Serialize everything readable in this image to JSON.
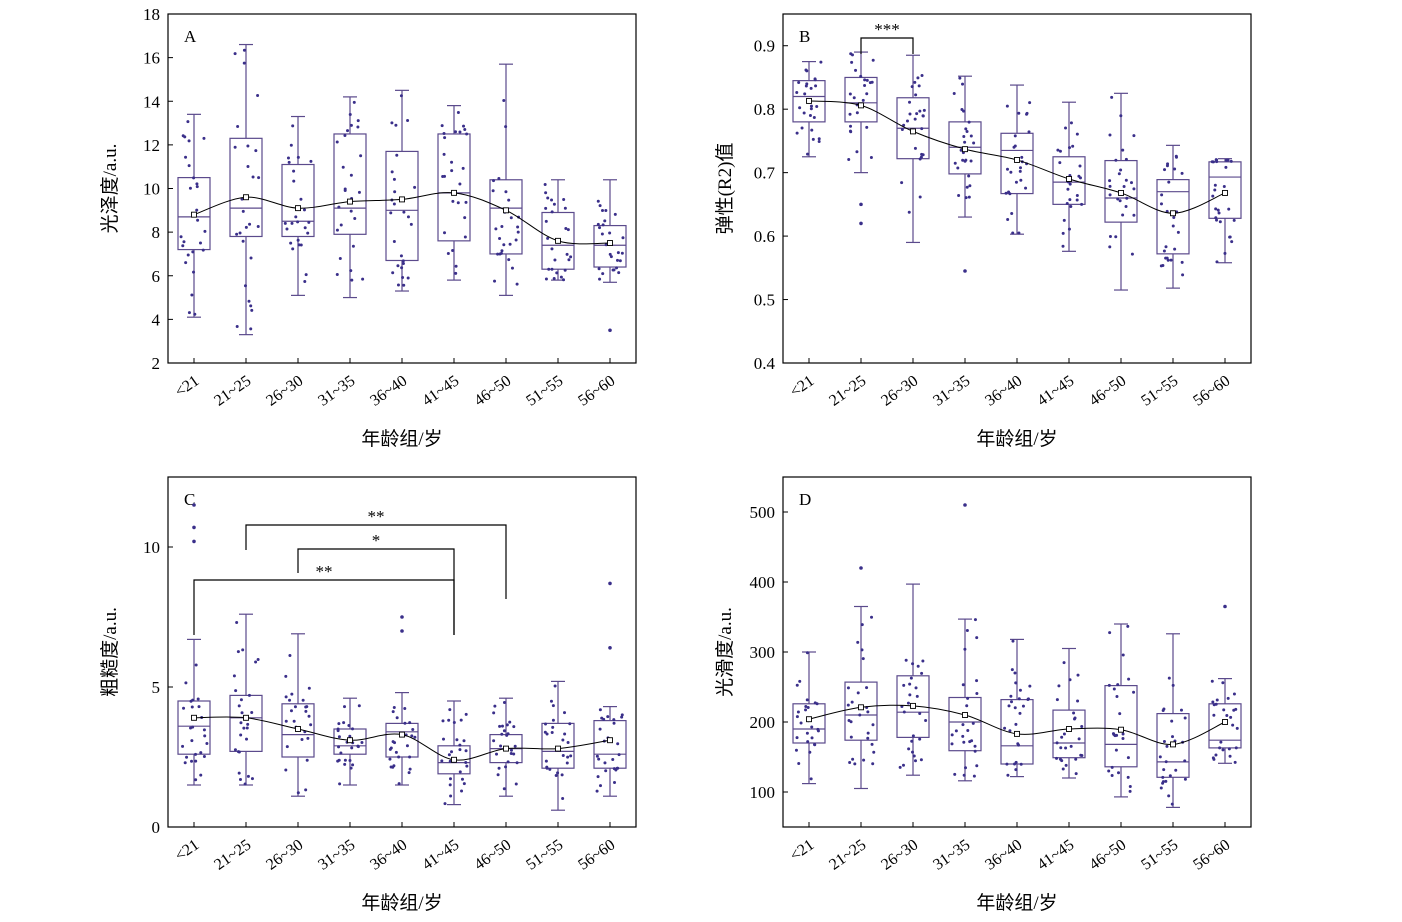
{
  "chart_data": [
    {
      "type": "box",
      "label": "A",
      "xlabel": "年龄组/岁",
      "ylabel": "光泽度/a.u.",
      "categories": [
        "<21",
        "21~25",
        "26~30",
        "31~35",
        "36~40",
        "41~45",
        "46~50",
        "51~55",
        "56~60"
      ],
      "ylim": [
        2,
        18
      ],
      "yticks": [
        2,
        4,
        6,
        8,
        10,
        12,
        14,
        16,
        18
      ],
      "boxes": [
        {
          "min": 4.1,
          "q1": 7.2,
          "median": 8.7,
          "q3": 10.5,
          "max": 13.4,
          "mean": 8.8
        },
        {
          "min": 3.3,
          "q1": 7.8,
          "median": 9.1,
          "q3": 12.3,
          "max": 16.6,
          "mean": 9.6
        },
        {
          "min": 5.1,
          "q1": 7.8,
          "median": 8.5,
          "q3": 11.1,
          "max": 13.3,
          "mean": 9.1
        },
        {
          "min": 5.0,
          "q1": 7.9,
          "median": 9.1,
          "q3": 12.5,
          "max": 14.2,
          "mean": 9.4
        },
        {
          "min": 5.3,
          "q1": 6.7,
          "median": 9.0,
          "q3": 11.7,
          "max": 14.5,
          "mean": 9.5
        },
        {
          "min": 5.8,
          "q1": 7.6,
          "median": 9.8,
          "q3": 12.5,
          "max": 13.8,
          "mean": 9.8
        },
        {
          "min": 5.1,
          "q1": 7.0,
          "median": 9.1,
          "q3": 10.4,
          "max": 15.7,
          "mean": 9.0
        },
        {
          "min": 5.8,
          "q1": 6.3,
          "median": 7.4,
          "q3": 8.9,
          "max": 10.4,
          "mean": 7.6
        },
        {
          "min": 5.7,
          "q1": 6.4,
          "median": 7.4,
          "q3": 8.3,
          "max": 10.4,
          "mean": 7.5
        }
      ],
      "outliers": [
        {
          "category": "56~60",
          "value": 3.5
        }
      ],
      "significance": []
    },
    {
      "type": "box",
      "label": "B",
      "xlabel": "年龄组/岁",
      "ylabel": "弹性(R2)值",
      "categories": [
        "<21",
        "21~25",
        "26~30",
        "31~35",
        "36~40",
        "41~45",
        "46~50",
        "51~55",
        "56~60"
      ],
      "ylim": [
        0.4,
        0.95
      ],
      "yticks": [
        0.4,
        0.5,
        0.6,
        0.7,
        0.8,
        0.9
      ],
      "boxes": [
        {
          "min": 0.725,
          "q1": 0.78,
          "median": 0.82,
          "q3": 0.845,
          "max": 0.875,
          "mean": 0.813
        },
        {
          "min": 0.7,
          "q1": 0.78,
          "median": 0.81,
          "q3": 0.85,
          "max": 0.89,
          "mean": 0.806
        },
        {
          "min": 0.59,
          "q1": 0.722,
          "median": 0.77,
          "q3": 0.818,
          "max": 0.885,
          "mean": 0.765
        },
        {
          "min": 0.63,
          "q1": 0.698,
          "median": 0.74,
          "q3": 0.78,
          "max": 0.852,
          "mean": 0.737
        },
        {
          "min": 0.603,
          "q1": 0.667,
          "median": 0.735,
          "q3": 0.762,
          "max": 0.838,
          "mean": 0.72
        },
        {
          "min": 0.576,
          "q1": 0.65,
          "median": 0.685,
          "q3": 0.725,
          "max": 0.811,
          "mean": 0.69
        },
        {
          "min": 0.515,
          "q1": 0.622,
          "median": 0.66,
          "q3": 0.719,
          "max": 0.825,
          "mean": 0.668
        },
        {
          "min": 0.518,
          "q1": 0.572,
          "median": 0.67,
          "q3": 0.689,
          "max": 0.743,
          "mean": 0.636
        },
        {
          "min": 0.558,
          "q1": 0.628,
          "median": 0.693,
          "q3": 0.717,
          "max": 0.722,
          "mean": 0.668
        }
      ],
      "outliers": [
        {
          "category": "21~25",
          "value": 0.65
        },
        {
          "category": "21~25",
          "value": 0.62
        },
        {
          "category": "31~35",
          "value": 0.545
        }
      ],
      "significance": [
        {
          "from": "21~25",
          "to": "26~30",
          "label": "***"
        }
      ]
    },
    {
      "type": "box",
      "label": "C",
      "xlabel": "年龄组/岁",
      "ylabel": "粗糙度/a.u.",
      "categories": [
        "<21",
        "21~25",
        "26~30",
        "31~35",
        "36~40",
        "41~45",
        "46~50",
        "51~55",
        "56~60"
      ],
      "ylim": [
        0,
        12.5
      ],
      "yticks": [
        0,
        5,
        10
      ],
      "boxes": [
        {
          "min": 1.5,
          "q1": 2.6,
          "median": 3.6,
          "q3": 4.5,
          "max": 6.7,
          "mean": 3.9
        },
        {
          "min": 1.5,
          "q1": 2.7,
          "median": 3.9,
          "q3": 4.7,
          "max": 7.6,
          "mean": 3.9
        },
        {
          "min": 1.1,
          "q1": 2.5,
          "median": 3.3,
          "q3": 4.4,
          "max": 6.9,
          "mean": 3.5
        },
        {
          "min": 1.5,
          "q1": 2.6,
          "median": 2.9,
          "q3": 3.5,
          "max": 4.6,
          "mean": 3.1
        },
        {
          "min": 1.5,
          "q1": 2.5,
          "median": 3.4,
          "q3": 3.7,
          "max": 4.8,
          "mean": 3.3
        },
        {
          "min": 0.8,
          "q1": 1.9,
          "median": 2.3,
          "q3": 2.9,
          "max": 4.5,
          "mean": 2.4
        },
        {
          "min": 1.1,
          "q1": 2.3,
          "median": 2.8,
          "q3": 3.3,
          "max": 4.6,
          "mean": 2.8
        },
        {
          "min": 0.6,
          "q1": 2.1,
          "median": 2.7,
          "q3": 3.7,
          "max": 5.2,
          "mean": 2.8
        },
        {
          "min": 1.1,
          "q1": 2.1,
          "median": 2.6,
          "q3": 3.8,
          "max": 4.3,
          "mean": 3.1
        }
      ],
      "outliers": [
        {
          "category": "<21",
          "value": 11.5
        },
        {
          "category": "<21",
          "value": 10.7
        },
        {
          "category": "<21",
          "value": 10.2
        },
        {
          "category": "36~40",
          "value": 7.5
        },
        {
          "category": "36~40",
          "value": 7.0
        },
        {
          "category": "56~60",
          "value": 8.7
        },
        {
          "category": "56~60",
          "value": 6.4
        }
      ],
      "significance": [
        {
          "from": "21~25",
          "to": "46~50",
          "label": "**"
        },
        {
          "from": "26~30",
          "to": "41~45",
          "label": "*"
        },
        {
          "from": "<21",
          "to": "41~45",
          "label": "**"
        }
      ]
    },
    {
      "type": "box",
      "label": "D",
      "xlabel": "年龄组/岁",
      "ylabel": "光滑度/a.u.",
      "categories": [
        "<21",
        "21~25",
        "26~30",
        "31~35",
        "36~40",
        "41~45",
        "46~50",
        "51~55",
        "56~60"
      ],
      "ylim": [
        50,
        550
      ],
      "yticks": [
        100,
        200,
        300,
        400,
        500
      ],
      "boxes": [
        {
          "min": 112,
          "q1": 170,
          "median": 190,
          "q3": 226,
          "max": 300,
          "mean": 204
        },
        {
          "min": 105,
          "q1": 174,
          "median": 210,
          "q3": 257,
          "max": 365,
          "mean": 221
        },
        {
          "min": 124,
          "q1": 178,
          "median": 214,
          "q3": 266,
          "max": 397,
          "mean": 223
        },
        {
          "min": 116,
          "q1": 159,
          "median": 200,
          "q3": 235,
          "max": 347,
          "mean": 210
        },
        {
          "min": 122,
          "q1": 140,
          "median": 166,
          "q3": 232,
          "max": 318,
          "mean": 183
        },
        {
          "min": 120,
          "q1": 149,
          "median": 170,
          "q3": 217,
          "max": 305,
          "mean": 190
        },
        {
          "min": 93,
          "q1": 136,
          "median": 168,
          "q3": 252,
          "max": 340,
          "mean": 189
        },
        {
          "min": 78,
          "q1": 121,
          "median": 143,
          "q3": 212,
          "max": 326,
          "mean": 168
        },
        {
          "min": 141,
          "q1": 163,
          "median": 174,
          "q3": 226,
          "max": 262,
          "mean": 200
        }
      ],
      "outliers": [
        {
          "category": "31~35",
          "value": 510
        },
        {
          "category": "21~25",
          "value": 420
        },
        {
          "category": "56~60",
          "value": 365
        }
      ],
      "significance": []
    }
  ],
  "colors": {
    "box": "#5b4a8c",
    "points": "#3a2f8a",
    "trend": "#000000",
    "frame": "#000000"
  }
}
